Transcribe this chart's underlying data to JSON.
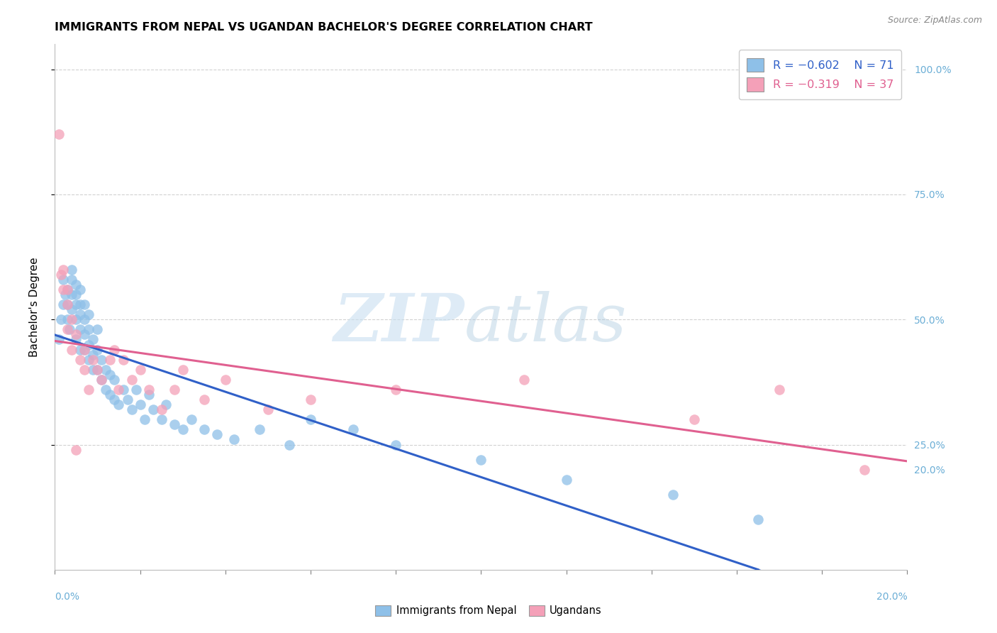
{
  "title": "IMMIGRANTS FROM NEPAL VS UGANDAN BACHELOR'S DEGREE CORRELATION CHART",
  "source": "Source: ZipAtlas.com",
  "ylabel": "Bachelor's Degree",
  "legend_label1": "Immigrants from Nepal",
  "legend_label2": "Ugandans",
  "legend_r1": "-0.602",
  "legend_n1": "71",
  "legend_r2": "-0.319",
  "legend_n2": "37",
  "color_blue": "#8ec0e8",
  "color_pink": "#f4a0b8",
  "color_blue_line": "#3060c8",
  "color_pink_line": "#e06090",
  "color_axis_blue": "#6baed6",
  "watermark_zip": "#c8dff0",
  "watermark_atlas": "#b0cce0",
  "nepal_x": [
    0.001,
    0.0015,
    0.002,
    0.002,
    0.0025,
    0.003,
    0.003,
    0.003,
    0.0035,
    0.004,
    0.004,
    0.004,
    0.004,
    0.005,
    0.005,
    0.005,
    0.005,
    0.005,
    0.006,
    0.006,
    0.006,
    0.006,
    0.006,
    0.007,
    0.007,
    0.007,
    0.007,
    0.008,
    0.008,
    0.008,
    0.008,
    0.009,
    0.009,
    0.009,
    0.01,
    0.01,
    0.01,
    0.011,
    0.011,
    0.012,
    0.012,
    0.013,
    0.013,
    0.014,
    0.014,
    0.015,
    0.016,
    0.017,
    0.018,
    0.019,
    0.02,
    0.021,
    0.022,
    0.023,
    0.025,
    0.026,
    0.028,
    0.03,
    0.032,
    0.035,
    0.038,
    0.042,
    0.048,
    0.055,
    0.06,
    0.07,
    0.08,
    0.1,
    0.12,
    0.145,
    0.165
  ],
  "nepal_y": [
    0.46,
    0.5,
    0.53,
    0.58,
    0.55,
    0.5,
    0.53,
    0.56,
    0.48,
    0.52,
    0.55,
    0.58,
    0.6,
    0.46,
    0.5,
    0.53,
    0.55,
    0.57,
    0.44,
    0.48,
    0.51,
    0.53,
    0.56,
    0.44,
    0.47,
    0.5,
    0.53,
    0.42,
    0.45,
    0.48,
    0.51,
    0.4,
    0.43,
    0.46,
    0.4,
    0.44,
    0.48,
    0.38,
    0.42,
    0.36,
    0.4,
    0.35,
    0.39,
    0.34,
    0.38,
    0.33,
    0.36,
    0.34,
    0.32,
    0.36,
    0.33,
    0.3,
    0.35,
    0.32,
    0.3,
    0.33,
    0.29,
    0.28,
    0.3,
    0.28,
    0.27,
    0.26,
    0.28,
    0.25,
    0.3,
    0.28,
    0.25,
    0.22,
    0.18,
    0.15,
    0.1
  ],
  "ugandan_x": [
    0.001,
    0.0015,
    0.002,
    0.002,
    0.003,
    0.003,
    0.003,
    0.004,
    0.004,
    0.005,
    0.005,
    0.006,
    0.007,
    0.007,
    0.008,
    0.009,
    0.01,
    0.011,
    0.013,
    0.014,
    0.015,
    0.016,
    0.018,
    0.02,
    0.022,
    0.025,
    0.028,
    0.03,
    0.035,
    0.04,
    0.05,
    0.06,
    0.08,
    0.11,
    0.15,
    0.17,
    0.19
  ],
  "ugandan_y": [
    0.87,
    0.59,
    0.56,
    0.6,
    0.53,
    0.48,
    0.56,
    0.44,
    0.5,
    0.47,
    0.24,
    0.42,
    0.4,
    0.44,
    0.36,
    0.42,
    0.4,
    0.38,
    0.42,
    0.44,
    0.36,
    0.42,
    0.38,
    0.4,
    0.36,
    0.32,
    0.36,
    0.4,
    0.34,
    0.38,
    0.32,
    0.34,
    0.36,
    0.38,
    0.3,
    0.36,
    0.2
  ],
  "xlim": [
    0.0,
    0.2
  ],
  "ylim": [
    0.0,
    1.05
  ],
  "yticks": [
    0.25,
    0.5,
    0.75,
    1.0
  ],
  "right_ytick_vals": [
    1.0,
    0.75,
    0.5,
    0.25,
    0.2
  ],
  "right_ytick_labels": [
    "100.0%",
    "75.0%",
    "50.0%",
    "25.0%",
    "20.0%"
  ]
}
